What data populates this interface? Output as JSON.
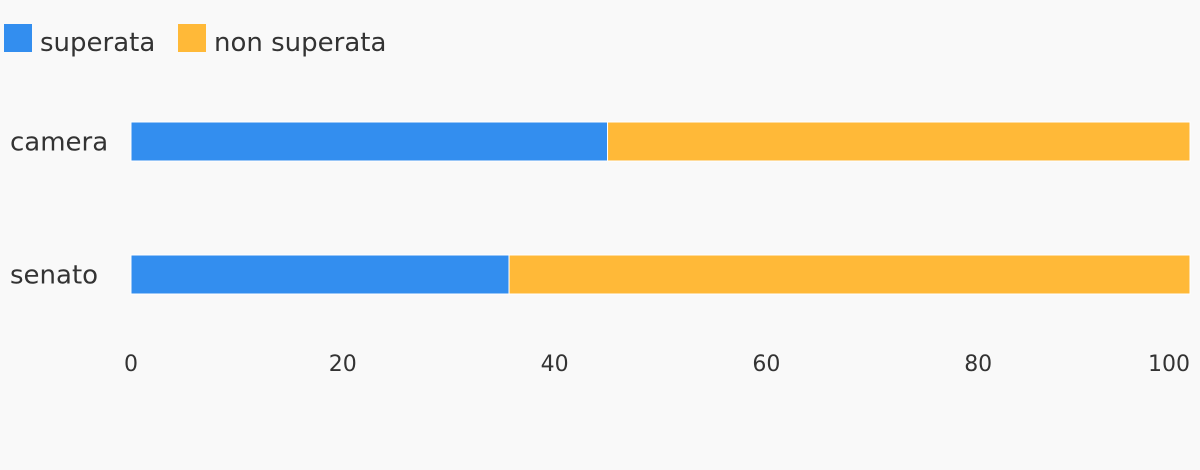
{
  "chart_data": {
    "type": "bar",
    "orientation": "horizontal",
    "stacked": true,
    "categories": [
      "camera",
      "senato"
    ],
    "series": [
      {
        "name": "superata",
        "color": "#338eef",
        "values": [
          45,
          35.7
        ]
      },
      {
        "name": "non superata",
        "color": "#ffb938",
        "values": [
          55,
          64.3
        ]
      }
    ],
    "xlim": [
      0,
      100
    ],
    "xticks": [
      "0",
      "20",
      "40",
      "60",
      "80",
      "100"
    ],
    "legend_position": "top-left",
    "grid": false,
    "title": "",
    "xlabel": "",
    "ylabel": ""
  }
}
